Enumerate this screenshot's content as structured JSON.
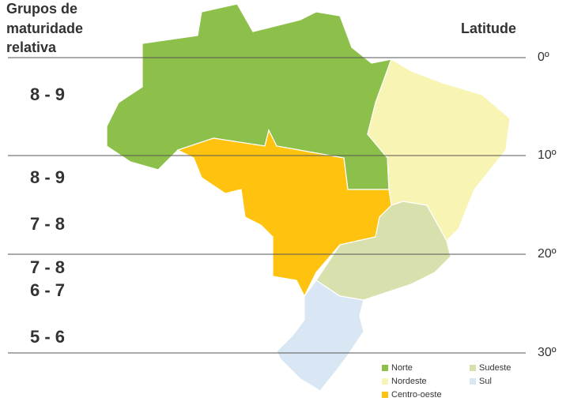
{
  "title_lines": [
    "Grupos de",
    "maturidade",
    "relativa"
  ],
  "latitude_title": "Latitude",
  "latitudes": [
    "0º",
    "10º",
    "20º",
    "30º"
  ],
  "groups": [
    "8 - 9",
    "8 - 9",
    "7 - 8",
    "7 - 8",
    "6 - 7",
    "5 - 6"
  ],
  "legend": [
    {
      "name": "Norte",
      "color": "#8cc04a"
    },
    {
      "name": "Nordeste",
      "color": "#f8f4b4"
    },
    {
      "name": "Centro-oeste",
      "color": "#ffc20e"
    },
    {
      "name": "Sudeste",
      "color": "#d8e1ae"
    },
    {
      "name": "Sul",
      "color": "#d8e7f3"
    }
  ]
}
